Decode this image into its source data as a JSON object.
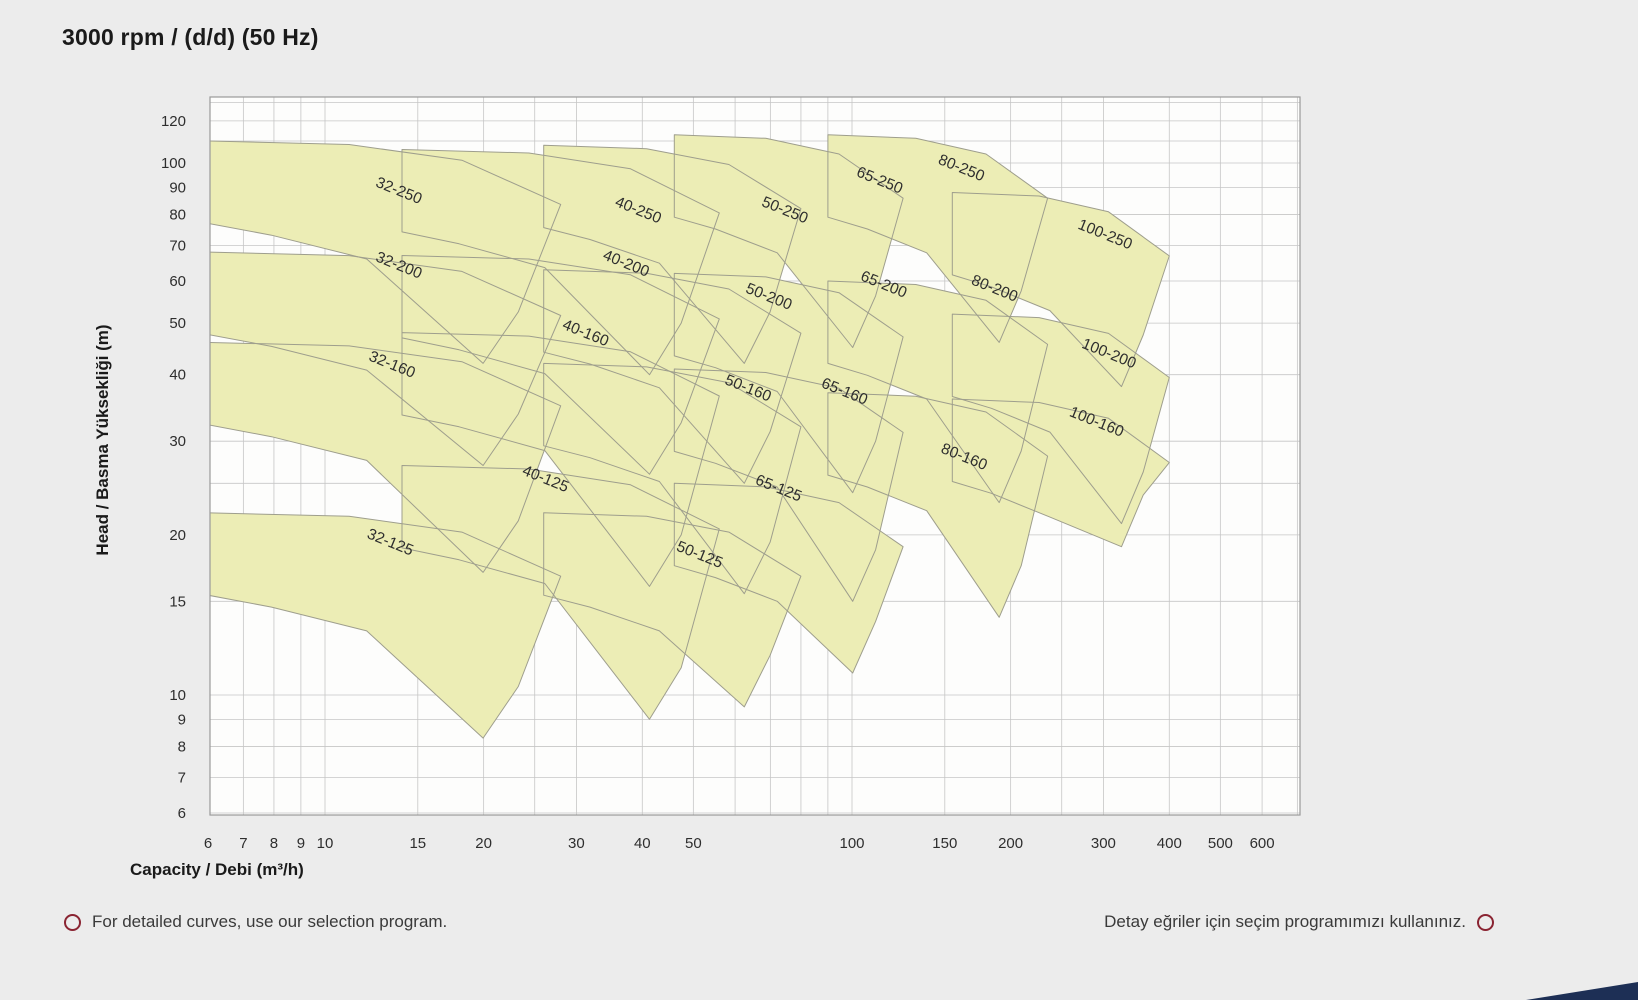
{
  "title": "3000 rpm / (d/d) (50 Hz)",
  "footer": {
    "left": "For detailed curves, use our selection program.",
    "right": "Detay eğriler için seçim programımızı kullanınız."
  },
  "colors": {
    "background": "#ececec",
    "plot_bg": "#fdfdfc",
    "grid": "#c6c6c6",
    "plot_border": "#9a9a9a",
    "region_fill": "#ecedb5",
    "region_stroke": "#9e9e8d",
    "tick_text": "#2e2e2e",
    "region_label_text": "#2e2e2e",
    "bullet": "#8a2432",
    "corner": "#1d2f55"
  },
  "chart_data": {
    "type": "area",
    "title": "3000 rpm / (d/d) (50 Hz)",
    "xlabel": "Capacity / Debi (m³/h)",
    "ylabel": "Head / Basma Yüksekliği (m)",
    "x_scale": "log",
    "y_scale": "log",
    "xlim": [
      6,
      700
    ],
    "ylim": [
      5.8,
      133
    ],
    "x_ticks": [
      6,
      7,
      8,
      9,
      10,
      15,
      20,
      30,
      40,
      50,
      100,
      150,
      200,
      300,
      400,
      500,
      600
    ],
    "y_ticks": [
      120,
      100,
      90,
      80,
      70,
      60,
      50,
      40,
      30,
      20,
      15,
      10,
      9,
      8,
      7,
      6
    ],
    "x_grid": [
      6,
      7,
      8,
      9,
      10,
      15,
      20,
      25,
      30,
      40,
      50,
      60,
      70,
      80,
      90,
      100,
      150,
      200,
      250,
      300,
      400,
      500,
      600,
      700
    ],
    "y_grid": [
      6,
      7,
      8,
      9,
      10,
      15,
      20,
      25,
      30,
      40,
      50,
      60,
      70,
      80,
      90,
      100,
      110,
      120,
      130
    ],
    "legend": "none",
    "grid": true,
    "regions": [
      {
        "label": "32-250",
        "q_min": 6,
        "q_max": 28,
        "h_max": 110,
        "h_min": 42,
        "label_q": 13.7,
        "label_h": 87
      },
      {
        "label": "40-250",
        "q_min": 14,
        "q_max": 56,
        "h_max": 106,
        "h_min": 40,
        "label_q": 39,
        "label_h": 80
      },
      {
        "label": "50-250",
        "q_min": 26,
        "q_max": 80,
        "h_max": 108,
        "h_min": 42,
        "label_q": 74,
        "label_h": 80
      },
      {
        "label": "65-250",
        "q_min": 46,
        "q_max": 125,
        "h_max": 113,
        "h_min": 45,
        "label_q": 112,
        "label_h": 91
      },
      {
        "label": "80-250",
        "q_min": 90,
        "q_max": 235,
        "h_max": 113,
        "h_min": 46,
        "label_q": 160,
        "label_h": 96
      },
      {
        "label": "100-250",
        "q_min": 155,
        "q_max": 400,
        "h_max": 88,
        "h_min": 38,
        "label_q": 300,
        "label_h": 72
      },
      {
        "label": "32-200",
        "q_min": 6,
        "q_max": 28,
        "h_max": 68,
        "h_min": 27,
        "label_q": 13.7,
        "label_h": 63
      },
      {
        "label": "40-200",
        "q_min": 14,
        "q_max": 56,
        "h_max": 67,
        "h_min": 26,
        "label_q": 37,
        "label_h": 63.5
      },
      {
        "label": "50-200",
        "q_min": 26,
        "q_max": 80,
        "h_max": 63,
        "h_min": 25,
        "label_q": 69,
        "label_h": 55
      },
      {
        "label": "65-200",
        "q_min": 46,
        "q_max": 125,
        "h_max": 62,
        "h_min": 24,
        "label_q": 114,
        "label_h": 58
      },
      {
        "label": "80-200",
        "q_min": 90,
        "q_max": 235,
        "h_max": 60,
        "h_min": 23,
        "label_q": 185,
        "label_h": 57
      },
      {
        "label": "100-200",
        "q_min": 155,
        "q_max": 400,
        "h_max": 52,
        "h_min": 21,
        "label_q": 305,
        "label_h": 43
      },
      {
        "label": "32-160",
        "q_min": 6,
        "q_max": 28,
        "h_max": 46,
        "h_min": 17,
        "label_q": 13.3,
        "label_h": 41
      },
      {
        "label": "40-160",
        "q_min": 14,
        "q_max": 56,
        "h_max": 48,
        "h_min": 16,
        "label_q": 31,
        "label_h": 47
      },
      {
        "label": "50-160",
        "q_min": 26,
        "q_max": 80,
        "h_max": 42,
        "h_min": 15.5,
        "label_q": 63,
        "label_h": 37
      },
      {
        "label": "65-160",
        "q_min": 46,
        "q_max": 125,
        "h_max": 41,
        "h_min": 15,
        "label_q": 96,
        "label_h": 36.5
      },
      {
        "label": "80-160",
        "q_min": 90,
        "q_max": 235,
        "h_max": 37,
        "h_min": 14,
        "label_q": 162,
        "label_h": 27.5
      },
      {
        "label": "100-160",
        "q_min": 155,
        "q_max": 400,
        "h_max": 36,
        "h_min": 19,
        "label_q": 289,
        "label_h": 32
      },
      {
        "label": "32-125",
        "q_min": 6,
        "q_max": 28,
        "h_max": 22,
        "h_min": 8.3,
        "label_q": 13.2,
        "label_h": 19
      },
      {
        "label": "40-125",
        "q_min": 14,
        "q_max": 56,
        "h_max": 27,
        "h_min": 9,
        "label_q": 26,
        "label_h": 25
      },
      {
        "label": "50-125",
        "q_min": 26,
        "q_max": 80,
        "h_max": 22,
        "h_min": 9.5,
        "label_q": 51,
        "label_h": 18
      },
      {
        "label": "65-125",
        "q_min": 46,
        "q_max": 125,
        "h_max": 25,
        "h_min": 11,
        "label_q": 72,
        "label_h": 24
      }
    ]
  }
}
